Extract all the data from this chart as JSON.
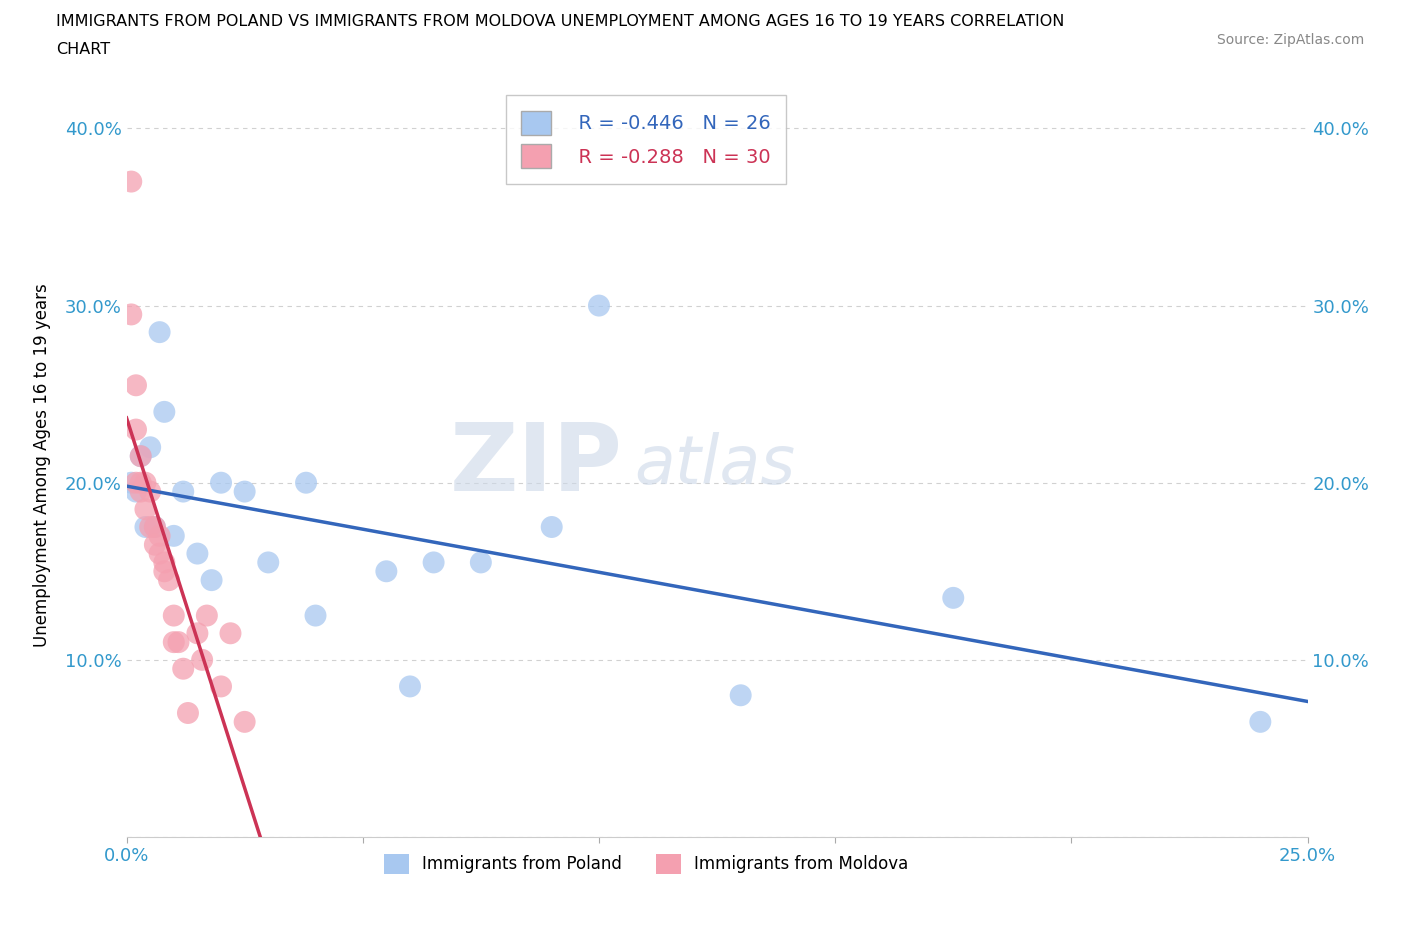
{
  "title": "IMMIGRANTS FROM POLAND VS IMMIGRANTS FROM MOLDOVA UNEMPLOYMENT AMONG AGES 16 TO 19 YEARS CORRELATION\nCHART",
  "source": "Source: ZipAtlas.com",
  "ylabel": "Unemployment Among Ages 16 to 19 years",
  "xlim": [
    0.0,
    0.25
  ],
  "ylim": [
    0.0,
    0.42
  ],
  "xticks": [
    0.0,
    0.05,
    0.1,
    0.15,
    0.2,
    0.25
  ],
  "xticklabels": [
    "0.0%",
    "",
    "",
    "",
    "",
    "25.0%"
  ],
  "yticks": [
    0.0,
    0.1,
    0.2,
    0.3,
    0.4
  ],
  "yticklabels": [
    "",
    "10.0%",
    "20.0%",
    "30.0%",
    "40.0%"
  ],
  "poland_R": -0.446,
  "poland_N": 26,
  "moldova_R": -0.288,
  "moldova_N": 30,
  "poland_color": "#a8c8f0",
  "moldova_color": "#f4a0b0",
  "poland_line_color": "#3366bb",
  "moldova_line_color": "#cc3355",
  "poland_x": [
    0.001,
    0.002,
    0.003,
    0.004,
    0.005,
    0.006,
    0.007,
    0.008,
    0.01,
    0.012,
    0.015,
    0.018,
    0.02,
    0.025,
    0.03,
    0.038,
    0.04,
    0.055,
    0.06,
    0.065,
    0.075,
    0.09,
    0.1,
    0.13,
    0.175,
    0.24
  ],
  "poland_y": [
    0.2,
    0.195,
    0.215,
    0.175,
    0.22,
    0.175,
    0.285,
    0.24,
    0.17,
    0.195,
    0.16,
    0.145,
    0.2,
    0.195,
    0.155,
    0.2,
    0.125,
    0.15,
    0.085,
    0.155,
    0.155,
    0.175,
    0.3,
    0.08,
    0.135,
    0.065
  ],
  "moldova_x": [
    0.001,
    0.001,
    0.002,
    0.002,
    0.002,
    0.003,
    0.003,
    0.003,
    0.004,
    0.004,
    0.005,
    0.005,
    0.006,
    0.006,
    0.007,
    0.007,
    0.008,
    0.008,
    0.009,
    0.01,
    0.01,
    0.011,
    0.012,
    0.013,
    0.015,
    0.016,
    0.017,
    0.02,
    0.022,
    0.025
  ],
  "moldova_y": [
    0.37,
    0.295,
    0.255,
    0.23,
    0.2,
    0.2,
    0.195,
    0.215,
    0.2,
    0.185,
    0.195,
    0.175,
    0.175,
    0.165,
    0.16,
    0.17,
    0.15,
    0.155,
    0.145,
    0.11,
    0.125,
    0.11,
    0.095,
    0.07,
    0.115,
    0.1,
    0.125,
    0.085,
    0.115,
    0.065
  ]
}
